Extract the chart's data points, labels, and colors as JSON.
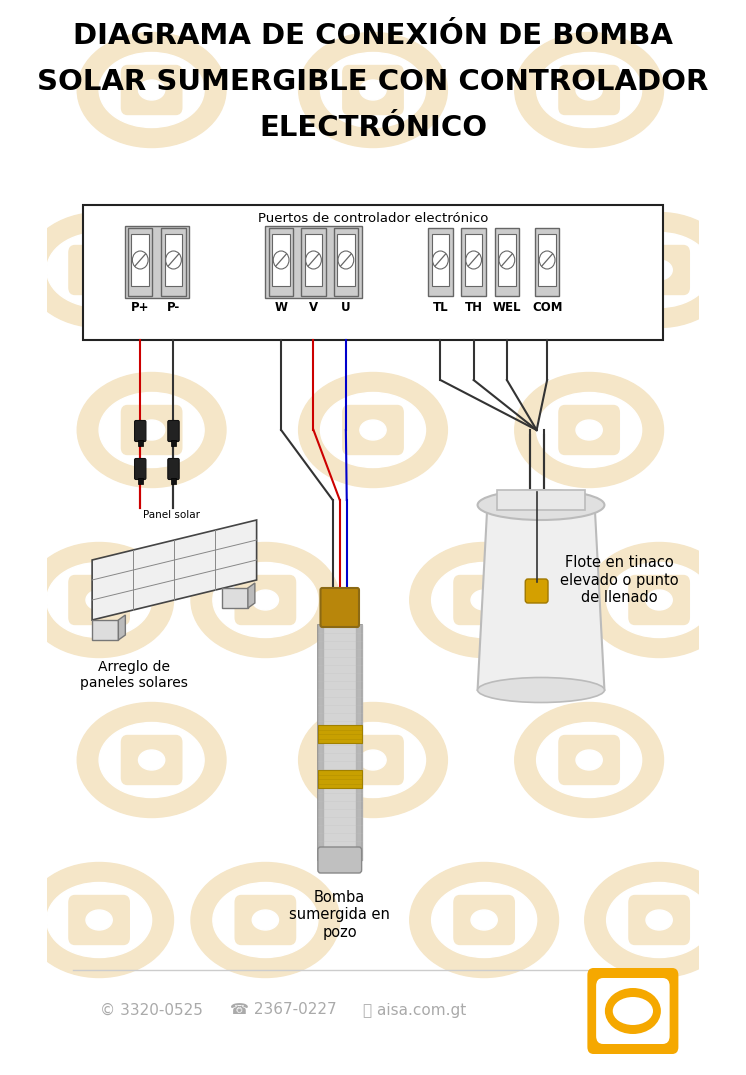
{
  "title_line1": "DIAGRAMA DE CONEXIÓN DE BOMBA",
  "title_line2": "SOLAR SUMERGIBLE CON CONTROLADOR",
  "title_line3": "ELECTRÓNICO",
  "bg_color": "#ffffff",
  "watermark_color": "#f5e6c8",
  "controller_label": "Puertos de controlador electrónico",
  "label_solar": "Panel solar",
  "label_array": "Arreglo de\npaneles solares",
  "label_pump": "Bomba\nsumergida en\npozo",
  "label_float": "Flote en tinaco\nelevado o punto\nde llenado",
  "footer_phone1": "© 3320-0525",
  "footer_phone2": "☎ 2367-0227",
  "footer_web": "ⓘ aisa.com.gt",
  "logo_color": "#f5a800",
  "wire_red": "#cc0000",
  "wire_black": "#333333",
  "wire_blue": "#0000cc",
  "port_labels_left": [
    "P+",
    "P-"
  ],
  "port_labels_mid": [
    "W",
    "V",
    "U"
  ],
  "port_labels_right": [
    "TL",
    "TH",
    "WEL",
    "COM"
  ]
}
